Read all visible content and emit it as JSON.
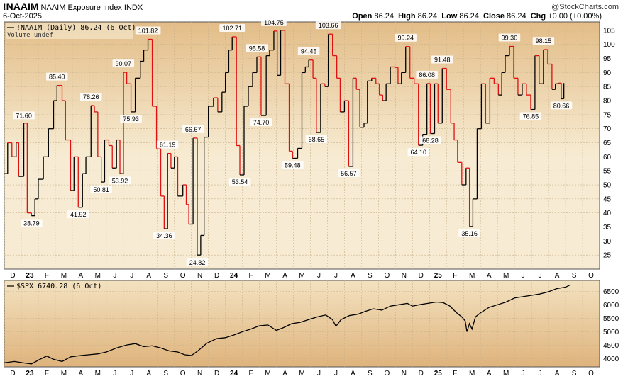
{
  "header": {
    "symbol": "!NAAIM",
    "name": "NAAIM Exposure Index INDX",
    "date": "6-Oct-2025",
    "brand": "@StockCharts.com",
    "ohlc_open_label": "Open",
    "ohlc_open": "86.24",
    "ohlc_high_label": "High",
    "ohlc_high": "86.24",
    "ohlc_low_label": "Low",
    "ohlc_low": "86.24",
    "ohlc_close_label": "Close",
    "ohlc_close": "86.24",
    "ohlc_chg_label": "Chg",
    "ohlc_chg": "+0.00 (+0.00%)"
  },
  "colors": {
    "background_top": "#f2e4c4",
    "background_bottom": "#dcb47e",
    "up": "#000000",
    "down": "#e01010"
  },
  "chart_data": [
    {
      "type": "line",
      "legend": "!NAAIM (Daily) 86.24 (6 Oct)",
      "legend2": "Volume undef",
      "ylim": [
        20,
        108
      ],
      "yticks": [
        25,
        30,
        35,
        40,
        45,
        50,
        55,
        60,
        65,
        70,
        75,
        80,
        85,
        90,
        95,
        100,
        105
      ],
      "x_month_labels": [
        {
          "label": "D",
          "t": 0.5
        },
        {
          "label": "23",
          "t": 1.5,
          "year": true
        },
        {
          "label": "F",
          "t": 2.5
        },
        {
          "label": "M",
          "t": 3.5
        },
        {
          "label": "A",
          "t": 4.5
        },
        {
          "label": "M",
          "t": 5.5
        },
        {
          "label": "J",
          "t": 6.5
        },
        {
          "label": "J",
          "t": 7.5
        },
        {
          "label": "A",
          "t": 8.5
        },
        {
          "label": "S",
          "t": 9.5
        },
        {
          "label": "O",
          "t": 10.5
        },
        {
          "label": "N",
          "t": 11.5
        },
        {
          "label": "D",
          "t": 12.5
        },
        {
          "label": "24",
          "t": 13.5,
          "year": true
        },
        {
          "label": "F",
          "t": 14.5
        },
        {
          "label": "M",
          "t": 15.5
        },
        {
          "label": "A",
          "t": 16.5
        },
        {
          "label": "M",
          "t": 17.5
        },
        {
          "label": "J",
          "t": 18.5
        },
        {
          "label": "J",
          "t": 19.5
        },
        {
          "label": "A",
          "t": 20.5
        },
        {
          "label": "S",
          "t": 21.5
        },
        {
          "label": "O",
          "t": 22.5
        },
        {
          "label": "N",
          "t": 23.5
        },
        {
          "label": "D",
          "t": 24.5
        },
        {
          "label": "25",
          "t": 25.5,
          "year": true
        },
        {
          "label": "F",
          "t": 26.5
        },
        {
          "label": "M",
          "t": 27.5
        },
        {
          "label": "A",
          "t": 28.5
        },
        {
          "label": "M",
          "t": 29.5
        },
        {
          "label": "J",
          "t": 30.5
        },
        {
          "label": "J",
          "t": 31.5
        },
        {
          "label": "A",
          "t": 32.5
        },
        {
          "label": "S",
          "t": 33.5
        },
        {
          "label": "O",
          "t": 34.5
        }
      ],
      "x_range": [
        0,
        35
      ],
      "points": [
        [
          0.0,
          54
        ],
        [
          0.2,
          65
        ],
        [
          0.45,
          60
        ],
        [
          0.7,
          65
        ],
        [
          0.85,
          53
        ],
        [
          1.15,
          72
        ],
        [
          1.35,
          40
        ],
        [
          1.6,
          39
        ],
        [
          1.8,
          45
        ],
        [
          2.0,
          52
        ],
        [
          2.3,
          60
        ],
        [
          2.6,
          70
        ],
        [
          2.9,
          80
        ],
        [
          3.1,
          85.4
        ],
        [
          3.4,
          80
        ],
        [
          3.6,
          66
        ],
        [
          3.9,
          48
        ],
        [
          4.1,
          60
        ],
        [
          4.35,
          42
        ],
        [
          4.6,
          54
        ],
        [
          4.8,
          60
        ],
        [
          5.1,
          78.26
        ],
        [
          5.3,
          76
        ],
        [
          5.5,
          60
        ],
        [
          5.7,
          51
        ],
        [
          5.9,
          66
        ],
        [
          6.15,
          64
        ],
        [
          6.35,
          56
        ],
        [
          6.6,
          66
        ],
        [
          6.8,
          54
        ],
        [
          7.0,
          90.07
        ],
        [
          7.2,
          86
        ],
        [
          7.45,
          76
        ],
        [
          7.7,
          88
        ],
        [
          8.0,
          94
        ],
        [
          8.2,
          98
        ],
        [
          8.45,
          101.82
        ],
        [
          8.7,
          78
        ],
        [
          8.95,
          63
        ],
        [
          9.2,
          46
        ],
        [
          9.4,
          34.36
        ],
        [
          9.6,
          61.2
        ],
        [
          9.8,
          56
        ],
        [
          10.0,
          60
        ],
        [
          10.2,
          46
        ],
        [
          10.5,
          50
        ],
        [
          10.7,
          43
        ],
        [
          10.85,
          36
        ],
        [
          11.1,
          66.67
        ],
        [
          11.35,
          25
        ],
        [
          11.55,
          32
        ],
        [
          11.75,
          67
        ],
        [
          12.0,
          78
        ],
        [
          12.3,
          81
        ],
        [
          12.55,
          76
        ],
        [
          12.8,
          83
        ],
        [
          13.0,
          90
        ],
        [
          13.2,
          98
        ],
        [
          13.4,
          102.71
        ],
        [
          13.65,
          64
        ],
        [
          13.85,
          53.54
        ],
        [
          14.1,
          78
        ],
        [
          14.35,
          85
        ],
        [
          14.6,
          90
        ],
        [
          14.85,
          95.58
        ],
        [
          15.1,
          74.7
        ],
        [
          15.4,
          96
        ],
        [
          15.6,
          98
        ],
        [
          15.85,
          104.75
        ],
        [
          16.05,
          89
        ],
        [
          16.25,
          105
        ],
        [
          16.5,
          86
        ],
        [
          16.75,
          62
        ],
        [
          16.95,
          59.48
        ],
        [
          17.25,
          63
        ],
        [
          17.5,
          90
        ],
        [
          17.7,
          92
        ],
        [
          17.9,
          94.45
        ],
        [
          18.15,
          88
        ],
        [
          18.35,
          68.65
        ],
        [
          18.6,
          86
        ],
        [
          18.85,
          85
        ],
        [
          19.05,
          103.66
        ],
        [
          19.3,
          96
        ],
        [
          19.55,
          88
        ],
        [
          19.75,
          76
        ],
        [
          20.0,
          80
        ],
        [
          20.25,
          56.57
        ],
        [
          20.5,
          88
        ],
        [
          20.7,
          84
        ],
        [
          20.9,
          70.5
        ],
        [
          21.15,
          72
        ],
        [
          21.35,
          87
        ],
        [
          21.6,
          88
        ],
        [
          21.85,
          86
        ],
        [
          22.05,
          82
        ],
        [
          22.25,
          80
        ],
        [
          22.45,
          86
        ],
        [
          22.7,
          92
        ],
        [
          22.95,
          91.8
        ],
        [
          23.15,
          86
        ],
        [
          23.35,
          90
        ],
        [
          23.6,
          99.24
        ],
        [
          23.85,
          88
        ],
        [
          24.1,
          86
        ],
        [
          24.35,
          64.1
        ],
        [
          24.6,
          68
        ],
        [
          24.85,
          86.08
        ],
        [
          25.05,
          68.28
        ],
        [
          25.3,
          86
        ],
        [
          25.5,
          72
        ],
        [
          25.75,
          91.48
        ],
        [
          26.0,
          84
        ],
        [
          26.25,
          72
        ],
        [
          26.45,
          66
        ],
        [
          26.65,
          58
        ],
        [
          26.9,
          50
        ],
        [
          27.15,
          56
        ],
        [
          27.35,
          35.16
        ],
        [
          27.55,
          45
        ],
        [
          27.8,
          70
        ],
        [
          28.05,
          86
        ],
        [
          28.3,
          72
        ],
        [
          28.55,
          88
        ],
        [
          28.8,
          86
        ],
        [
          29.05,
          82
        ],
        [
          29.25,
          90
        ],
        [
          29.45,
          96
        ],
        [
          29.7,
          99.3
        ],
        [
          29.95,
          88
        ],
        [
          30.2,
          82
        ],
        [
          30.45,
          86
        ],
        [
          30.7,
          82
        ],
        [
          30.95,
          76.85
        ],
        [
          31.2,
          96
        ],
        [
          31.45,
          86
        ],
        [
          31.7,
          98.15
        ],
        [
          31.95,
          93
        ],
        [
          32.2,
          84
        ],
        [
          32.4,
          86
        ],
        [
          32.6,
          86.24
        ],
        [
          32.75,
          80.66
        ],
        [
          32.9,
          86.24
        ]
      ],
      "annotations": [
        {
          "text": "71.60",
          "t": 1.15,
          "v": 71.6,
          "pos": "above"
        },
        {
          "text": "38.79",
          "t": 1.6,
          "v": 38.79,
          "pos": "below"
        },
        {
          "text": "85.40",
          "t": 3.1,
          "v": 85.4,
          "pos": "above"
        },
        {
          "text": "41.92",
          "t": 4.35,
          "v": 41.92,
          "pos": "below"
        },
        {
          "text": "78.26",
          "t": 5.1,
          "v": 78.26,
          "pos": "above"
        },
        {
          "text": "50.81",
          "t": 5.7,
          "v": 50.81,
          "pos": "below"
        },
        {
          "text": "53.92",
          "t": 6.8,
          "v": 53.92,
          "pos": "below"
        },
        {
          "text": "90.07",
          "t": 7.0,
          "v": 90.07,
          "pos": "above"
        },
        {
          "text": "75.93",
          "t": 7.45,
          "v": 75.93,
          "pos": "below"
        },
        {
          "text": "101.82",
          "t": 8.45,
          "v": 101.82,
          "pos": "above"
        },
        {
          "text": "61.19",
          "t": 9.6,
          "v": 61.19,
          "pos": "above"
        },
        {
          "text": "34.36",
          "t": 9.4,
          "v": 34.36,
          "pos": "below"
        },
        {
          "text": "66.67",
          "t": 11.1,
          "v": 66.67,
          "pos": "above"
        },
        {
          "text": "24.82",
          "t": 11.35,
          "v": 24.82,
          "pos": "below"
        },
        {
          "text": "102.71",
          "t": 13.4,
          "v": 102.71,
          "pos": "above"
        },
        {
          "text": "53.54",
          "t": 13.85,
          "v": 53.54,
          "pos": "below"
        },
        {
          "text": "95.58",
          "t": 14.85,
          "v": 95.58,
          "pos": "above"
        },
        {
          "text": "74.70",
          "t": 15.1,
          "v": 74.7,
          "pos": "below"
        },
        {
          "text": "104.75",
          "t": 15.85,
          "v": 104.75,
          "pos": "above"
        },
        {
          "text": "59.48",
          "t": 16.95,
          "v": 59.48,
          "pos": "below"
        },
        {
          "text": "94.45",
          "t": 17.9,
          "v": 94.45,
          "pos": "above"
        },
        {
          "text": "68.65",
          "t": 18.35,
          "v": 68.65,
          "pos": "below"
        },
        {
          "text": "103.66",
          "t": 19.05,
          "v": 103.66,
          "pos": "above"
        },
        {
          "text": "56.57",
          "t": 20.25,
          "v": 56.57,
          "pos": "below"
        },
        {
          "text": "99.24",
          "t": 23.6,
          "v": 99.24,
          "pos": "above"
        },
        {
          "text": "64.10",
          "t": 24.35,
          "v": 64.1,
          "pos": "below"
        },
        {
          "text": "86.08",
          "t": 24.85,
          "v": 86.08,
          "pos": "above"
        },
        {
          "text": "68.28",
          "t": 25.05,
          "v": 68.28,
          "pos": "below"
        },
        {
          "text": "91.48",
          "t": 25.75,
          "v": 91.48,
          "pos": "above"
        },
        {
          "text": "35.16",
          "t": 27.35,
          "v": 35.16,
          "pos": "below"
        },
        {
          "text": "99.30",
          "t": 29.7,
          "v": 99.3,
          "pos": "above"
        },
        {
          "text": "76.85",
          "t": 30.95,
          "v": 76.85,
          "pos": "below"
        },
        {
          "text": "98.15",
          "t": 31.7,
          "v": 98.15,
          "pos": "above"
        },
        {
          "text": "80.66",
          "t": 32.75,
          "v": 80.66,
          "pos": "below"
        }
      ]
    },
    {
      "type": "line",
      "legend": "$SPX 6740.28 (6 Oct)",
      "ylim": [
        3700,
        6900
      ],
      "yticks": [
        4000,
        4500,
        5000,
        5500,
        6000,
        6500
      ],
      "x_range": [
        0,
        35
      ],
      "points": [
        [
          0.0,
          3850
        ],
        [
          0.6,
          3900
        ],
        [
          1.2,
          3840
        ],
        [
          1.6,
          3810
        ],
        [
          2.1,
          3980
        ],
        [
          2.5,
          4100
        ],
        [
          2.9,
          3980
        ],
        [
          3.4,
          3900
        ],
        [
          3.9,
          4070
        ],
        [
          4.5,
          4120
        ],
        [
          5.0,
          4150
        ],
        [
          5.5,
          4180
        ],
        [
          6.0,
          4250
        ],
        [
          6.6,
          4400
        ],
        [
          7.2,
          4510
        ],
        [
          7.7,
          4560
        ],
        [
          8.2,
          4450
        ],
        [
          8.7,
          4480
        ],
        [
          9.2,
          4400
        ],
        [
          9.7,
          4290
        ],
        [
          10.2,
          4250
        ],
        [
          10.6,
          4150
        ],
        [
          11.0,
          4120
        ],
        [
          11.4,
          4300
        ],
        [
          11.9,
          4570
        ],
        [
          12.5,
          4750
        ],
        [
          13.0,
          4780
        ],
        [
          13.5,
          4880
        ],
        [
          14.0,
          5000
        ],
        [
          14.5,
          5100
        ],
        [
          15.0,
          5220
        ],
        [
          15.5,
          5250
        ],
        [
          16.0,
          5050
        ],
        [
          16.4,
          5150
        ],
        [
          16.9,
          5300
        ],
        [
          17.4,
          5350
        ],
        [
          17.9,
          5450
        ],
        [
          18.4,
          5550
        ],
        [
          18.9,
          5620
        ],
        [
          19.3,
          5450
        ],
        [
          19.5,
          5200
        ],
        [
          19.8,
          5450
        ],
        [
          20.3,
          5600
        ],
        [
          20.8,
          5650
        ],
        [
          21.2,
          5750
        ],
        [
          21.7,
          5850
        ],
        [
          22.2,
          5800
        ],
        [
          22.7,
          5950
        ],
        [
          23.2,
          6000
        ],
        [
          23.7,
          6050
        ],
        [
          24.0,
          5950
        ],
        [
          24.4,
          6000
        ],
        [
          24.9,
          6050
        ],
        [
          25.4,
          6100
        ],
        [
          25.8,
          6080
        ],
        [
          26.2,
          5950
        ],
        [
          26.6,
          5700
        ],
        [
          26.9,
          5550
        ],
        [
          27.1,
          5400
        ],
        [
          27.2,
          5000
        ],
        [
          27.35,
          5300
        ],
        [
          27.5,
          5100
        ],
        [
          27.7,
          5550
        ],
        [
          28.0,
          5700
        ],
        [
          28.5,
          5900
        ],
        [
          29.0,
          6000
        ],
        [
          29.5,
          6100
        ],
        [
          30.0,
          6250
        ],
        [
          30.5,
          6300
        ],
        [
          31.0,
          6350
        ],
        [
          31.5,
          6400
        ],
        [
          32.0,
          6480
        ],
        [
          32.5,
          6600
        ],
        [
          33.0,
          6650
        ],
        [
          33.3,
          6740.28
        ]
      ]
    }
  ]
}
